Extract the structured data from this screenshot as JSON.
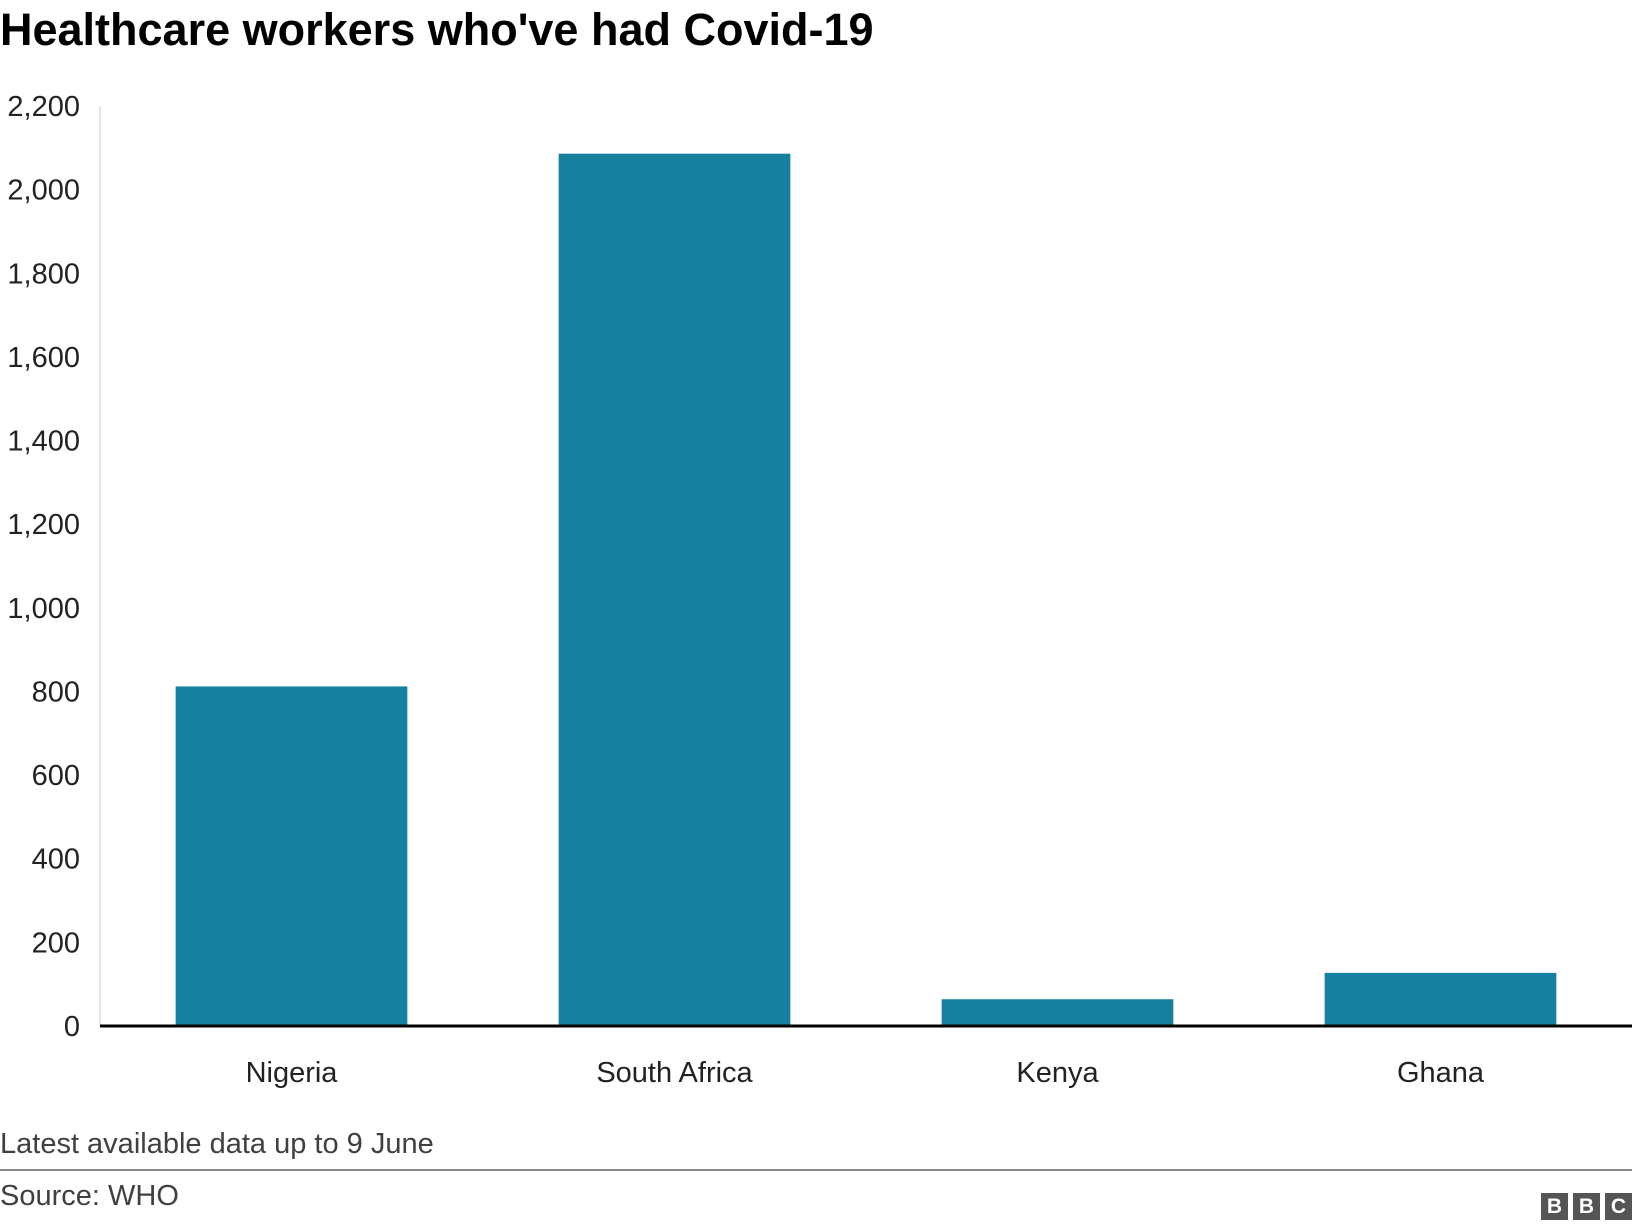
{
  "chart_data": {
    "type": "bar",
    "title": "Healthcare workers who've had Covid-19",
    "categories": [
      "Nigeria",
      "South Africa",
      "Kenya",
      "Ghana"
    ],
    "values": [
      812,
      2086,
      64,
      127
    ],
    "ylim": [
      0,
      2200
    ],
    "yticks": [
      0,
      200,
      400,
      600,
      800,
      1000,
      1200,
      1400,
      1600,
      1800,
      2000,
      2200
    ],
    "ytick_labels": [
      "0",
      "200",
      "400",
      "600",
      "800",
      "1,000",
      "1,200",
      "1,400",
      "1,600",
      "1,800",
      "2,000",
      "2,200"
    ],
    "xlabel": "",
    "ylabel": "",
    "grid": false,
    "legend": "none",
    "bar_color": "#1580a0"
  },
  "footer": {
    "note": "Latest available data up to 9 June",
    "source": "Source: WHO",
    "logo": [
      "B",
      "B",
      "C"
    ]
  }
}
